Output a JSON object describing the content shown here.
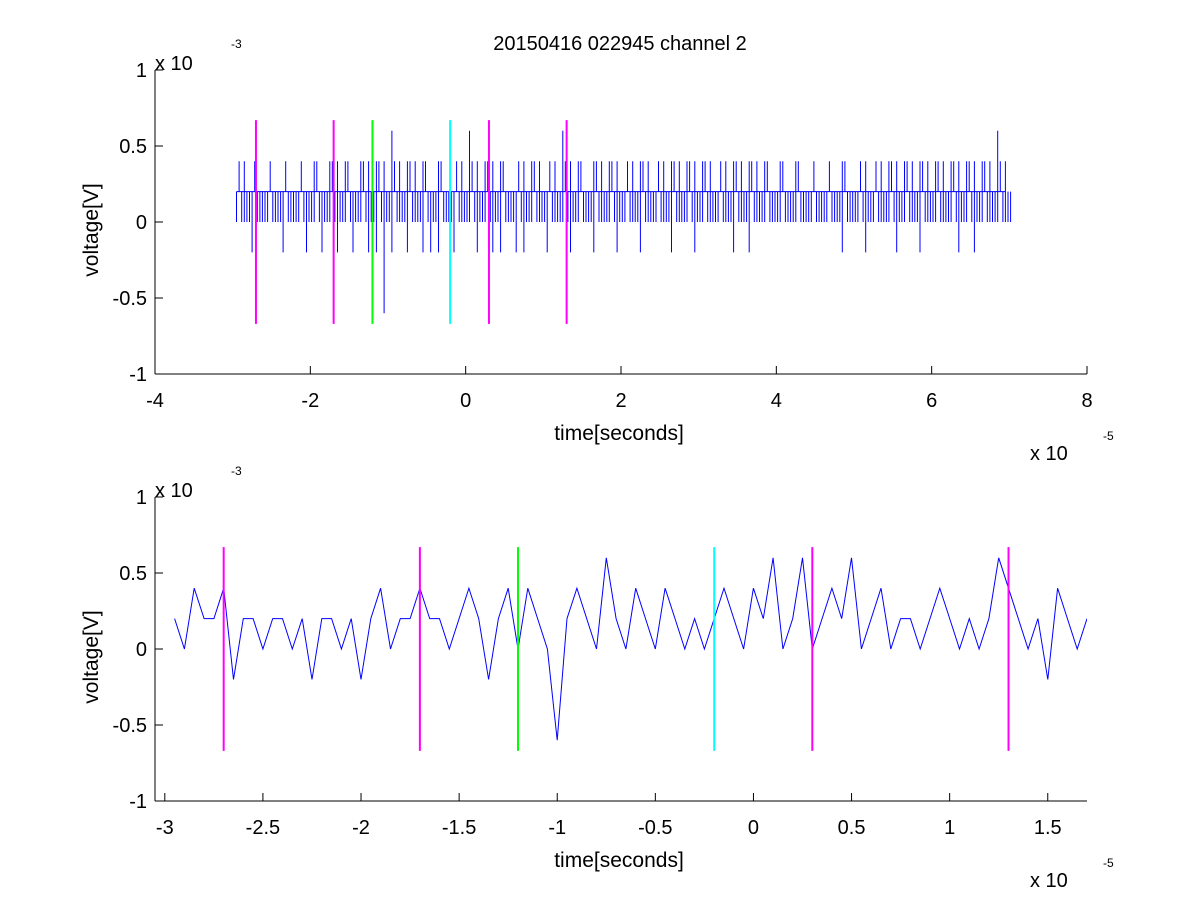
{
  "title": "20150416 022945 channel 2",
  "chart_data": [
    {
      "type": "line",
      "xlabel": "time[seconds]",
      "ylabel": "voltage[V]",
      "x_multiplier": "x 10",
      "x_exponent": "-5",
      "y_multiplier": "x 10",
      "y_exponent": "-3",
      "xlim": [
        -4,
        8
      ],
      "ylim": [
        -1,
        1
      ],
      "xticks": [
        -4,
        -2,
        0,
        2,
        4,
        6,
        8
      ],
      "xtick_labels": [
        "-4",
        "-2",
        "0",
        "2",
        "4",
        "6",
        "8"
      ],
      "yticks": [
        -1,
        -0.5,
        0,
        0.5,
        1
      ],
      "ytick_labels": [
        "-1",
        "-0.5",
        "0",
        "0.5",
        "1"
      ],
      "signal_color": "#0000ff",
      "series": [
        {
          "x": [
            -2.95,
            -2.85,
            -2.75,
            -2.65,
            -2.55,
            -2.45,
            -2.35,
            -2.25,
            -2.15,
            -2.05,
            -1.95,
            -1.85,
            -1.75,
            -1.65,
            -1.55,
            -1.45,
            -1.35,
            -1.25,
            -1.15,
            -1.05,
            -0.95,
            -0.85,
            -0.75,
            -0.65,
            -0.55,
            -0.45,
            -0.35,
            -0.25,
            -0.15,
            -0.05,
            0.05,
            0.15,
            0.25,
            0.35,
            0.45,
            0.55,
            0.65,
            0.75,
            0.85,
            0.95,
            1.05,
            1.15,
            1.25,
            1.35,
            1.45,
            1.55,
            1.65,
            1.75,
            1.85,
            1.95,
            2.05,
            2.15,
            2.25,
            2.35,
            2.45,
            2.55,
            2.65,
            2.75,
            2.85,
            2.95,
            3.05,
            3.15,
            3.25,
            3.35,
            3.45,
            3.55,
            3.65,
            3.75,
            3.85,
            3.95,
            4.05,
            4.15,
            4.25,
            4.35,
            4.45,
            4.55,
            4.65,
            4.75,
            4.85,
            4.95,
            5.05,
            5.15,
            5.25,
            5.35,
            5.45,
            5.55,
            5.65,
            5.75,
            5.85,
            5.95,
            6.05,
            6.15,
            6.25,
            6.35,
            6.45,
            6.55,
            6.65,
            6.75,
            6.85,
            6.95
          ],
          "ymin": [
            0,
            0,
            -0.2,
            0,
            0,
            0,
            -0.2,
            0,
            0,
            -0.2,
            0,
            -0.2,
            0,
            -0.2,
            0,
            -0.2,
            0,
            -0.2,
            -0.2,
            -0.6,
            -0.2,
            0,
            -0.2,
            0,
            -0.2,
            -0.2,
            -0.2,
            0,
            -0.2,
            0,
            0,
            -0.2,
            0,
            -0.2,
            -0.2,
            0,
            -0.2,
            -0.2,
            0,
            0,
            -0.2,
            0,
            0,
            -0.2,
            0,
            0,
            -0.2,
            0,
            0,
            -0.2,
            0,
            0,
            -0.2,
            0,
            0,
            0,
            -0.2,
            0,
            0,
            -0.2,
            0,
            0,
            0,
            0,
            -0.2,
            0,
            -0.2,
            0,
            0,
            0,
            0,
            0,
            0,
            0,
            0,
            0,
            0,
            0,
            -0.2,
            0,
            0,
            -0.2,
            0,
            0,
            0,
            -0.2,
            0,
            0,
            -0.2,
            0,
            0,
            0,
            0,
            -0.2,
            0,
            -0.2,
            0,
            0,
            0,
            0
          ],
          "ymax": [
            0.2,
            0.4,
            0.2,
            0.2,
            0.2,
            0.2,
            0.2,
            0.2,
            0.2,
            0.2,
            0.4,
            0.2,
            0.4,
            0.4,
            0.4,
            0.2,
            0.4,
            0.4,
            0.4,
            0.4,
            0.6,
            0.4,
            0.4,
            0.4,
            0.4,
            0.2,
            0.4,
            0.2,
            0.2,
            0.4,
            0.6,
            0.4,
            0.4,
            0.4,
            0.4,
            0.2,
            0.2,
            0.4,
            0.4,
            0.4,
            0.2,
            0.4,
            0.6,
            0.4,
            0.4,
            0.2,
            0.4,
            0.4,
            0.4,
            0.4,
            0.2,
            0.4,
            0.4,
            0.4,
            0.2,
            0.4,
            0.4,
            0.4,
            0.4,
            0.4,
            0.4,
            0.4,
            0.2,
            0.4,
            0.4,
            0.4,
            0.4,
            0.4,
            0.4,
            0.2,
            0.4,
            0.2,
            0.4,
            0.2,
            0.2,
            0.2,
            0.2,
            0.2,
            0.4,
            0.2,
            0.2,
            0.4,
            0.2,
            0.4,
            0.4,
            0.4,
            0.4,
            0.4,
            0.4,
            0.4,
            0.4,
            0.4,
            0.4,
            0.4,
            0.4,
            0.4,
            0.4,
            0.4,
            0.6,
            0.4
          ]
        }
      ],
      "markers": [
        {
          "x": -2.7,
          "color": "#ff00ff"
        },
        {
          "x": -1.7,
          "color": "#ff00ff"
        },
        {
          "x": -1.2,
          "color": "#00ff00"
        },
        {
          "x": -0.2,
          "color": "#00ffff"
        },
        {
          "x": 0.3,
          "color": "#ff00ff"
        },
        {
          "x": 1.3,
          "color": "#ff00ff"
        }
      ],
      "marker_range": [
        -0.67,
        0.67
      ]
    },
    {
      "type": "line",
      "xlabel": "time[seconds]",
      "ylabel": "voltage[V]",
      "x_multiplier": "x 10",
      "x_exponent": "-5",
      "y_multiplier": "x 10",
      "y_exponent": "-3",
      "xlim": [
        -3.05,
        1.7
      ],
      "ylim": [
        -1,
        1
      ],
      "xticks": [
        -3,
        -2.5,
        -2,
        -1.5,
        -1,
        -0.5,
        0,
        0.5,
        1,
        1.5
      ],
      "xtick_labels": [
        "-3",
        "-2.5",
        "-2",
        "-1.5",
        "-1",
        "-0.5",
        "0",
        "0.5",
        "1",
        "1.5"
      ],
      "yticks": [
        -1,
        -0.5,
        0,
        0.5,
        1
      ],
      "ytick_labels": [
        "-1",
        "-0.5",
        "0",
        "0.5",
        "1"
      ],
      "signal_color": "#0000ff",
      "series": [
        {
          "x": [
            -2.95,
            -2.9,
            -2.85,
            -2.8,
            -2.75,
            -2.7,
            -2.65,
            -2.6,
            -2.55,
            -2.5,
            -2.45,
            -2.4,
            -2.35,
            -2.3,
            -2.25,
            -2.2,
            -2.15,
            -2.1,
            -2.05,
            -2.0,
            -1.95,
            -1.9,
            -1.85,
            -1.8,
            -1.75,
            -1.7,
            -1.65,
            -1.6,
            -1.55,
            -1.5,
            -1.45,
            -1.4,
            -1.35,
            -1.3,
            -1.25,
            -1.2,
            -1.15,
            -1.1,
            -1.05,
            -1.0,
            -0.95,
            -0.9,
            -0.85,
            -0.8,
            -0.75,
            -0.7,
            -0.65,
            -0.6,
            -0.55,
            -0.5,
            -0.45,
            -0.4,
            -0.35,
            -0.3,
            -0.25,
            -0.2,
            -0.15,
            -0.1,
            -0.05,
            0.0,
            0.05,
            0.1,
            0.15,
            0.2,
            0.25,
            0.3,
            0.35,
            0.4,
            0.45,
            0.5,
            0.55,
            0.6,
            0.65,
            0.7,
            0.75,
            0.8,
            0.85,
            0.9,
            0.95,
            1.0,
            1.05,
            1.1,
            1.15,
            1.2,
            1.25,
            1.3,
            1.35,
            1.4,
            1.45,
            1.5,
            1.55,
            1.6,
            1.65,
            1.7
          ],
          "y": [
            0.2,
            0.0,
            0.4,
            0.2,
            0.2,
            0.4,
            -0.2,
            0.2,
            0.2,
            0.0,
            0.2,
            0.2,
            0.0,
            0.2,
            -0.2,
            0.2,
            0.2,
            0.0,
            0.2,
            -0.2,
            0.2,
            0.4,
            0.0,
            0.2,
            0.2,
            0.4,
            0.2,
            0.2,
            0.0,
            0.2,
            0.4,
            0.2,
            -0.2,
            0.2,
            0.4,
            0.0,
            0.4,
            0.2,
            0.0,
            -0.6,
            0.2,
            0.4,
            0.2,
            0.0,
            0.6,
            0.2,
            0.0,
            0.4,
            0.2,
            0.0,
            0.4,
            0.2,
            0.0,
            0.2,
            0.0,
            0.2,
            0.4,
            0.2,
            0.0,
            0.4,
            0.2,
            0.6,
            0.0,
            0.2,
            0.6,
            0.0,
            0.2,
            0.4,
            0.2,
            0.6,
            0.0,
            0.2,
            0.4,
            0.0,
            0.2,
            0.2,
            0.0,
            0.2,
            0.4,
            0.2,
            0.0,
            0.2,
            0.0,
            0.2,
            0.6,
            0.4,
            0.2,
            0.0,
            0.2,
            -0.2,
            0.4,
            0.2,
            0.0,
            0.2
          ]
        }
      ],
      "markers": [
        {
          "x": -2.7,
          "color": "#ff00ff"
        },
        {
          "x": -1.7,
          "color": "#ff00ff"
        },
        {
          "x": -1.2,
          "color": "#00ff00"
        },
        {
          "x": -0.2,
          "color": "#00ffff"
        },
        {
          "x": 0.3,
          "color": "#ff00ff"
        },
        {
          "x": 1.3,
          "color": "#ff00ff"
        }
      ],
      "marker_range": [
        -0.67,
        0.67
      ]
    }
  ]
}
